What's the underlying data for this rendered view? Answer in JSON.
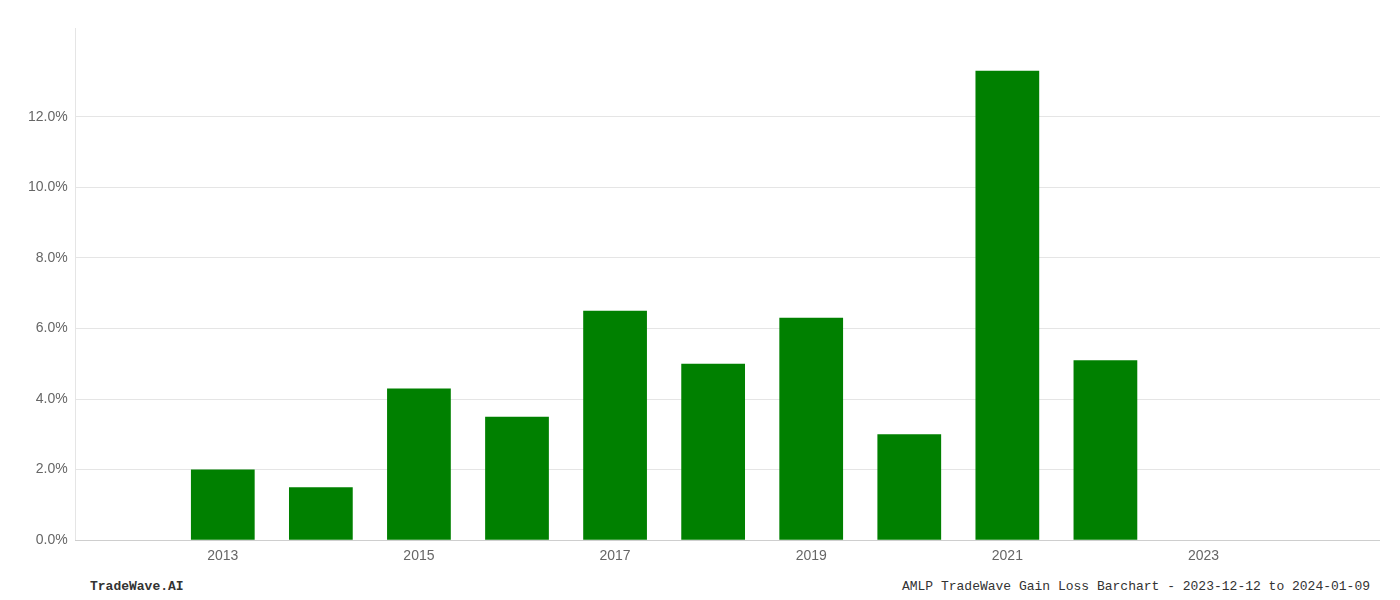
{
  "chart_data": {
    "type": "bar",
    "x": [
      2013,
      2014,
      2015,
      2016,
      2017,
      2018,
      2019,
      2020,
      2021,
      2022,
      2023
    ],
    "values": [
      0.02,
      0.015,
      0.043,
      0.035,
      0.065,
      0.05,
      0.063,
      0.03,
      0.133,
      0.051,
      0.0
    ],
    "color": "#008000",
    "xlim": [
      2011.5,
      2024.8
    ],
    "xticks": [
      2013,
      2015,
      2017,
      2019,
      2021,
      2023
    ],
    "ylim": [
      0.0,
      0.145
    ],
    "yticks": [
      {
        "value": 0.0,
        "label": "0.0%"
      },
      {
        "value": 0.02,
        "label": "2.0%"
      },
      {
        "value": 0.04,
        "label": "4.0%"
      },
      {
        "value": 0.06,
        "label": "6.0%"
      },
      {
        "value": 0.08,
        "label": "8.0%"
      },
      {
        "value": 0.1,
        "label": "10.0%"
      },
      {
        "value": 0.12,
        "label": "12.0%"
      }
    ],
    "grid": "y",
    "annotations": [
      "TradeWave.AI",
      "AMLP TradeWave Gain Loss Barchart - 2023-12-12 to 2024-01-09"
    ]
  }
}
